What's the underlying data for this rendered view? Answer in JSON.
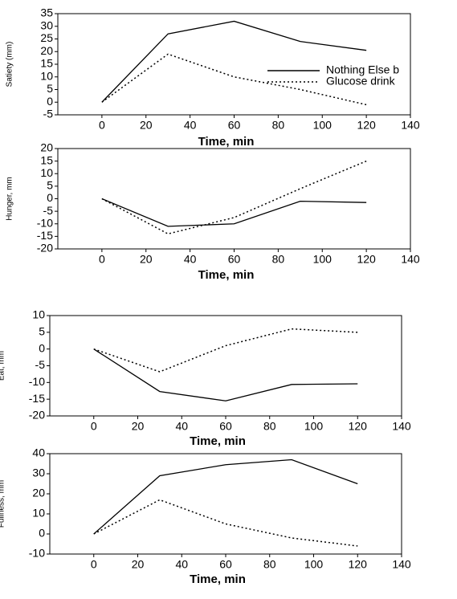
{
  "chart_data": [
    {
      "type": "line",
      "x_label": "Time, min",
      "y_label": "Satiety (mm)",
      "x": [
        0,
        30,
        60,
        90,
        120
      ],
      "series": [
        {
          "name": "Nothing Else b",
          "color": "#000000",
          "style": "solid",
          "values": [
            0,
            27,
            32,
            24,
            20.5
          ]
        },
        {
          "name": "Glucose drink",
          "color": "#000000",
          "style": "dotted",
          "values": [
            0,
            19,
            10,
            5,
            -1
          ]
        }
      ],
      "xlim": [
        -20,
        140
      ],
      "xticks": [
        0,
        20,
        40,
        60,
        80,
        100,
        120,
        140
      ],
      "ylim": [
        -5,
        35
      ],
      "yticks": [
        -5,
        0,
        5,
        10,
        15,
        20,
        25,
        30,
        35
      ],
      "legend": "center right"
    },
    {
      "type": "line",
      "x_label": "Time, min",
      "y_label": "Hunger, mm",
      "x": [
        0,
        30,
        60,
        90,
        120
      ],
      "series": [
        {
          "color": "#000000",
          "style": "solid",
          "values": [
            0,
            -11,
            -10,
            -1,
            -1.5
          ]
        },
        {
          "color": "#000000",
          "style": "dotted",
          "values": [
            0,
            -14,
            -7.5,
            4,
            15
          ]
        }
      ],
      "xlim": [
        -20,
        140
      ],
      "xticks": [
        0,
        20,
        40,
        60,
        80,
        100,
        120,
        140
      ],
      "ylim": [
        -20,
        20
      ],
      "yticks": [
        -20,
        -15,
        -10,
        -5,
        0,
        5,
        10,
        15,
        20
      ]
    },
    {
      "type": "line",
      "x_label": "Time, min",
      "y_label": "Eat, mm",
      "x": [
        0,
        30,
        60,
        90,
        120
      ],
      "series": [
        {
          "color": "#000000",
          "style": "solid",
          "values": [
            0,
            -12.7,
            -15.5,
            -10.6,
            -10.4
          ]
        },
        {
          "color": "#000000",
          "style": "dotted",
          "values": [
            0,
            -6.8,
            1,
            6,
            5
          ]
        }
      ],
      "xlim": [
        -20,
        140
      ],
      "xticks": [
        0,
        20,
        40,
        60,
        80,
        100,
        120,
        140
      ],
      "ylim": [
        -20,
        10
      ],
      "yticks": [
        -20,
        -15,
        -10,
        -5,
        0,
        5,
        10
      ]
    },
    {
      "type": "line",
      "x_label": "Time, min",
      "y_label": "Fullness, mm",
      "x": [
        0,
        30,
        60,
        90,
        120
      ],
      "series": [
        {
          "color": "#000000",
          "style": "solid",
          "values": [
            0,
            29,
            34.5,
            37,
            25
          ]
        },
        {
          "color": "#000000",
          "style": "dotted",
          "values": [
            0,
            17,
            5,
            -2,
            -6
          ]
        }
      ],
      "xlim": [
        -20,
        140
      ],
      "xticks": [
        0,
        20,
        40,
        60,
        80,
        100,
        120,
        140
      ],
      "ylim": [
        -10,
        40
      ],
      "yticks": [
        -10,
        0,
        10,
        20,
        30,
        40
      ]
    }
  ]
}
